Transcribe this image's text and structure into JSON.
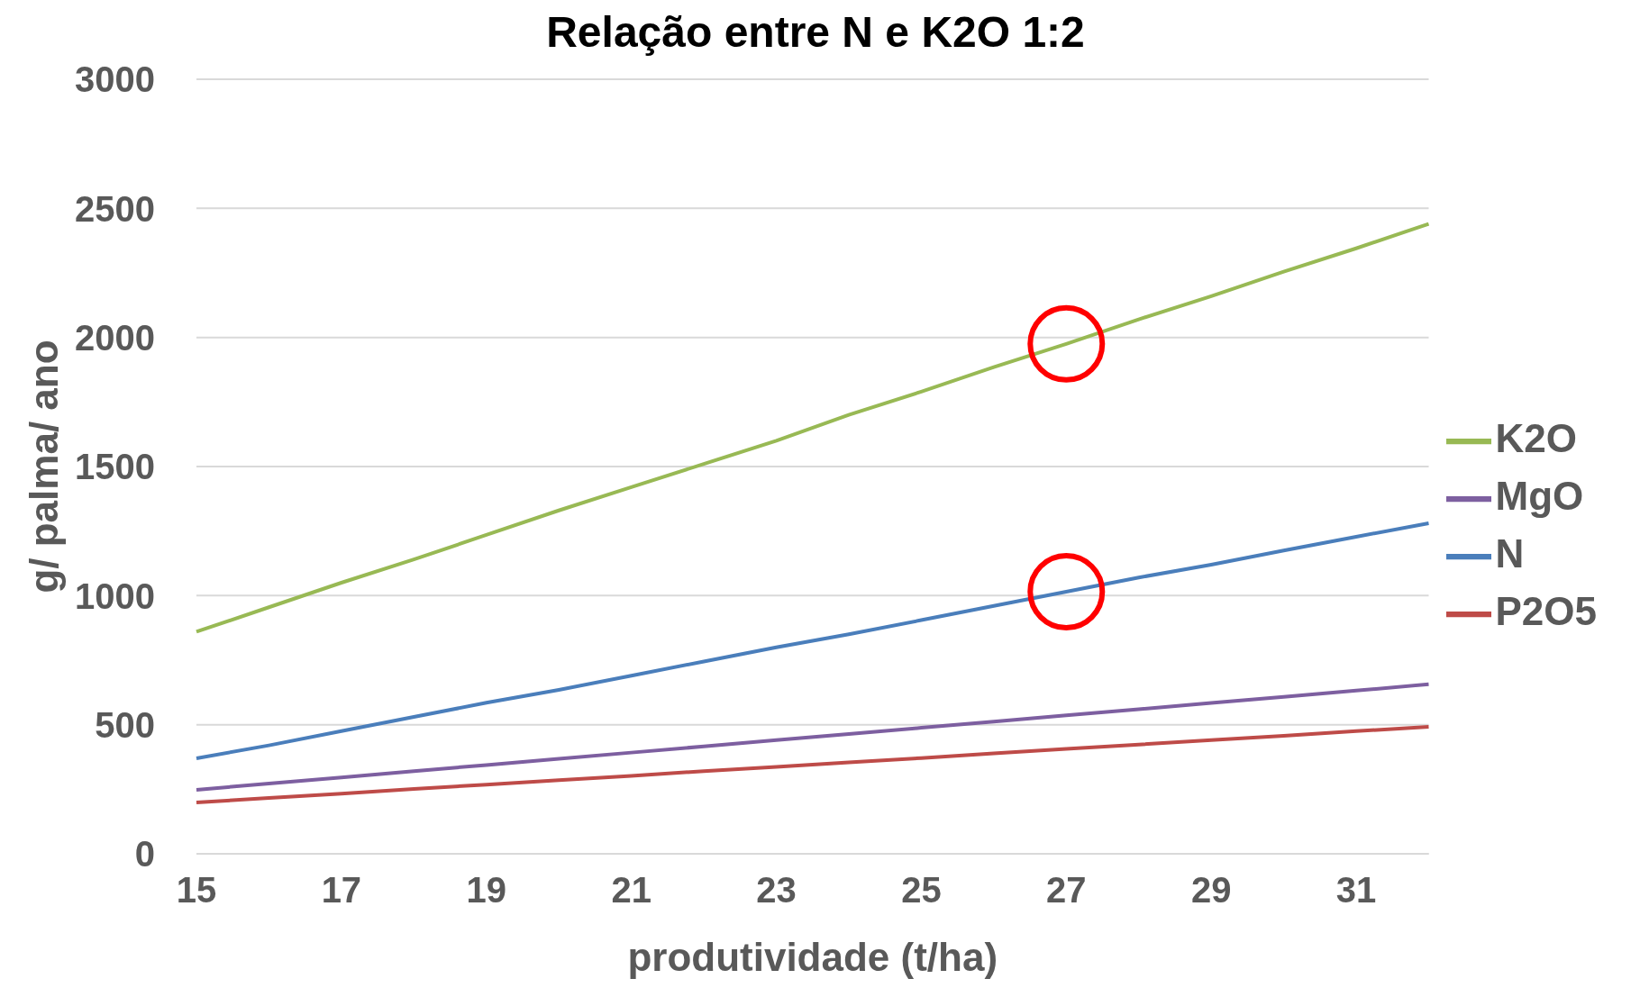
{
  "chart_data": {
    "type": "line",
    "title": "Relação entre N e K2O 1:2",
    "xlabel": "produtividade (t/ha)",
    "ylabel": "g/ palma/ ano",
    "categories": [
      "15",
      null,
      "17",
      null,
      "19",
      null,
      "21",
      null,
      "23",
      null,
      "25",
      null,
      "27",
      null,
      "29",
      null,
      "31",
      null
    ],
    "series": [
      {
        "name": "N",
        "color": "#4a7ebb",
        "values": [
          370,
          420,
          475,
          530,
          585,
          635,
          690,
          745,
          800,
          850,
          905,
          960,
          1015,
          1070,
          1120,
          1175,
          1228,
          1280
        ]
      },
      {
        "name": "P2O5",
        "color": "#be4b48",
        "values": [
          199,
          216,
          233,
          251,
          268,
          285,
          302,
          320,
          337,
          354,
          371,
          389,
          406,
          423,
          440,
          457,
          475,
          492
        ]
      },
      {
        "name": "K2O",
        "color": "#98b954",
        "values": [
          860,
          955,
          1050,
          1140,
          1235,
          1330,
          1420,
          1510,
          1600,
          1700,
          1790,
          1885,
          1975,
          2070,
          2160,
          2255,
          2345,
          2440
        ]
      },
      {
        "name": "MgO",
        "color": "#7d5fa0",
        "values": [
          248,
          272,
          296,
          320,
          344,
          368,
          392,
          416,
          440,
          464,
          488,
          512,
          536,
          560,
          584,
          608,
          632,
          657
        ]
      }
    ],
    "ylim": [
      0,
      3000
    ],
    "yticks": [
      0,
      500,
      1000,
      1500,
      2000,
      2500,
      3000
    ],
    "grid": "y",
    "legend": "right",
    "marker": "none",
    "line_style": "solid"
  }
}
